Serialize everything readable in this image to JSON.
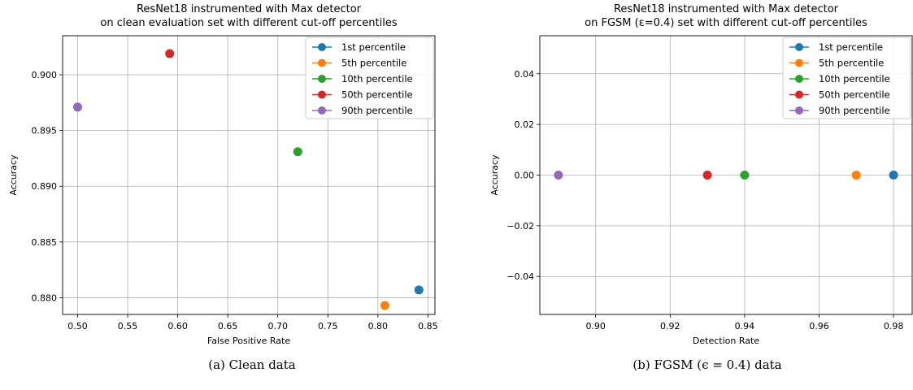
{
  "chart_data": [
    {
      "type": "scatter",
      "title_line1": "ResNet18 instrumented with Max detector",
      "title_line2": "on clean evaluation set with different cut-off percentiles",
      "xlabel": "False Positive Rate",
      "ylabel": "Accuracy",
      "xlim": [
        0.485,
        0.857
      ],
      "ylim": [
        0.8785,
        0.9035
      ],
      "xticks": [
        0.5,
        0.55,
        0.6,
        0.65,
        0.7,
        0.75,
        0.8,
        0.85
      ],
      "xtick_labels": [
        "0.50",
        "0.55",
        "0.60",
        "0.65",
        "0.70",
        "0.75",
        "0.80",
        "0.85"
      ],
      "yticks": [
        0.88,
        0.885,
        0.89,
        0.895,
        0.9
      ],
      "ytick_labels": [
        "0.880",
        "0.885",
        "0.890",
        "0.895",
        "0.900"
      ],
      "grid": true,
      "legend": "top-right",
      "series": [
        {
          "name": "1st percentile",
          "color": "#1f77b4",
          "x": [
            0.841
          ],
          "y": [
            0.8807
          ]
        },
        {
          "name": "5th percentile",
          "color": "#ff7f0e",
          "x": [
            0.807
          ],
          "y": [
            0.8793
          ]
        },
        {
          "name": "10th percentile",
          "color": "#2ca02c",
          "x": [
            0.72
          ],
          "y": [
            0.8931
          ]
        },
        {
          "name": "50th percentile",
          "color": "#d62728",
          "x": [
            0.592
          ],
          "y": [
            0.9019
          ]
        },
        {
          "name": "90th percentile",
          "color": "#9467bd",
          "x": [
            0.5
          ],
          "y": [
            0.8971
          ]
        }
      ],
      "caption": "(a) Clean data"
    },
    {
      "type": "scatter",
      "title_line1": "ResNet18 instrumented with Max detector",
      "title_line2": "on FGSM (ε=0.4) set with different cut-off percentiles",
      "xlabel": "Detection Rate",
      "ylabel": "Accuracy",
      "xlim": [
        0.885,
        0.985
      ],
      "ylim": [
        -0.055,
        0.055
      ],
      "xticks": [
        0.9,
        0.92,
        0.94,
        0.96,
        0.98
      ],
      "xtick_labels": [
        "0.90",
        "0.92",
        "0.94",
        "0.96",
        "0.98"
      ],
      "yticks": [
        -0.04,
        -0.02,
        0.0,
        0.02,
        0.04
      ],
      "ytick_labels": [
        "−0.04",
        "−0.02",
        "0.00",
        "0.02",
        "0.04"
      ],
      "grid": true,
      "legend": "top-right",
      "series": [
        {
          "name": "1st percentile",
          "color": "#1f77b4",
          "x": [
            0.98
          ],
          "y": [
            0.0
          ]
        },
        {
          "name": "5th percentile",
          "color": "#ff7f0e",
          "x": [
            0.97
          ],
          "y": [
            0.0
          ]
        },
        {
          "name": "10th percentile",
          "color": "#2ca02c",
          "x": [
            0.94
          ],
          "y": [
            0.0
          ]
        },
        {
          "name": "50th percentile",
          "color": "#d62728",
          "x": [
            0.93
          ],
          "y": [
            0.0
          ]
        },
        {
          "name": "90th percentile",
          "color": "#9467bd",
          "x": [
            0.89
          ],
          "y": [
            0.0
          ]
        }
      ],
      "caption": "(b) FGSM (ϵ = 0.4) data"
    }
  ]
}
